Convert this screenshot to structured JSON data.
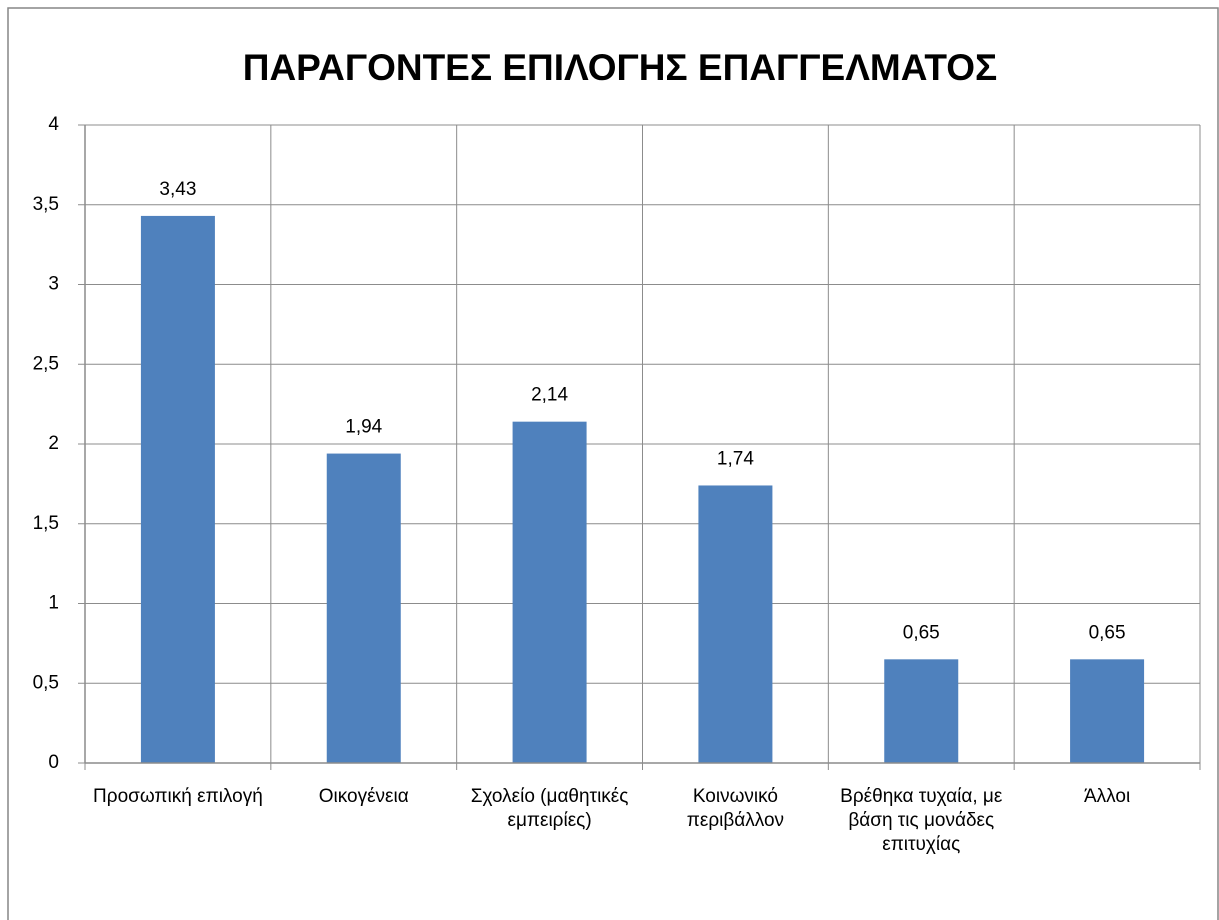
{
  "chart_data": {
    "type": "bar",
    "title": "ΠΑΡΑΓΟΝΤΕΣ ΕΠΙΛΟΓΗΣ ΕΠΑΓΓΕΛΜΑΤΟΣ",
    "categories": [
      "Προσωπική επιλογή",
      "Οικογένεια",
      "Σχολείο (μαθητικές εμπειρίες)",
      "Κοινωνικό περιβάλλον",
      "Βρέθηκα τυχαία, με βάση τις μονάδες επιτυχίας",
      "Άλλοι"
    ],
    "values": [
      3.43,
      1.94,
      2.14,
      1.74,
      0.65,
      0.65
    ],
    "value_labels": [
      "3,43",
      "1,94",
      "2,14",
      "1,74",
      "0,65",
      "0,65"
    ],
    "color": "#4f81bd",
    "ylim": [
      0,
      4
    ],
    "yticks": [
      0,
      {
        "value": 0.5,
        "label": "0,5"
      },
      1,
      {
        "value": 1.5,
        "label": "1,5"
      },
      2,
      {
        "value": 2.5,
        "label": "2,5"
      },
      3,
      {
        "value": 3.5,
        "label": "3,5"
      },
      4
    ],
    "grid": true
  }
}
